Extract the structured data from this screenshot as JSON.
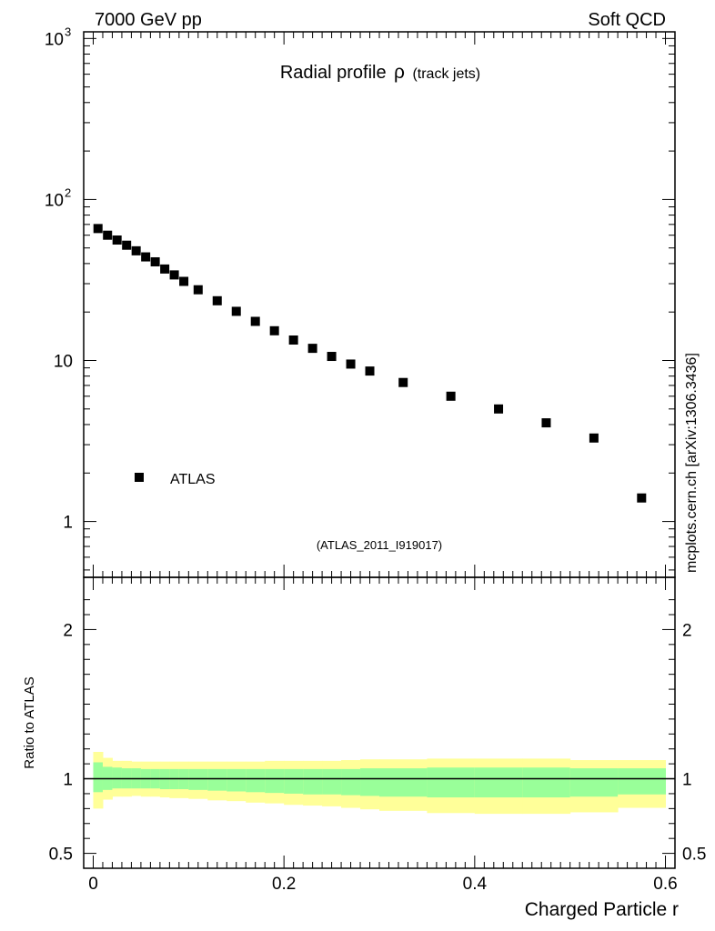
{
  "header": {
    "left_label": "7000 GeV pp",
    "right_label": "Soft QCD",
    "side_label": "mcplots.cern.ch [arXiv:1306.3436]"
  },
  "chart_data": {
    "type": "scatter",
    "title_main": "Radial profile",
    "title_symbol": "ρ",
    "title_suffix": "(track jets)",
    "analysis_id": "(ATLAS_2011_I919017)",
    "legend": [
      "ATLAS"
    ],
    "xlabel": "Charged Particle r",
    "xlim": [
      -0.01,
      0.61
    ],
    "x_ticks": [
      {
        "value": 0,
        "label": "0"
      },
      {
        "value": 0.2,
        "label": "0.2"
      },
      {
        "value": 0.4,
        "label": "0.4"
      },
      {
        "value": 0.6,
        "label": "0.6"
      }
    ],
    "main_panel": {
      "yscale": "log",
      "ylim": [
        0.45,
        1100
      ],
      "y_ticks": [
        {
          "value": 1,
          "label": "1"
        },
        {
          "value": 10,
          "label": "10"
        },
        {
          "value": 100,
          "label": "10",
          "exponent": "2"
        },
        {
          "value": 1000,
          "label": "10",
          "exponent": "3"
        }
      ],
      "series": [
        {
          "name": "ATLAS",
          "x": [
            0.005,
            0.015,
            0.025,
            0.035,
            0.045,
            0.055,
            0.065,
            0.075,
            0.085,
            0.095,
            0.11,
            0.13,
            0.15,
            0.17,
            0.19,
            0.21,
            0.23,
            0.25,
            0.27,
            0.29,
            0.325,
            0.375,
            0.425,
            0.475,
            0.525,
            0.575
          ],
          "y": [
            66,
            60,
            56,
            52,
            48,
            44,
            41,
            37,
            34,
            31,
            27.5,
            23.5,
            20.2,
            17.5,
            15.3,
            13.4,
            11.9,
            10.6,
            9.5,
            8.6,
            7.3,
            6.0,
            5.0,
            4.1,
            3.3,
            1.4
          ]
        }
      ]
    },
    "ratio_panel": {
      "ylabel": "Ratio to ATLAS",
      "ylim": [
        0.4,
        2.35
      ],
      "y_ticks": [
        {
          "value": 0.5,
          "label": "0.5"
        },
        {
          "value": 1,
          "label": "1"
        },
        {
          "value": 2,
          "label": "2"
        }
      ],
      "reference_line": 1,
      "bins": [
        {
          "lo": 0.0,
          "hi": 0.01,
          "inner": [
            0.91,
            1.11
          ],
          "outer": [
            0.8,
            1.18
          ]
        },
        {
          "lo": 0.01,
          "hi": 0.02,
          "inner": [
            0.925,
            1.08
          ],
          "outer": [
            0.86,
            1.14
          ]
        },
        {
          "lo": 0.02,
          "hi": 0.03,
          "inner": [
            0.935,
            1.075
          ],
          "outer": [
            0.88,
            1.12
          ]
        },
        {
          "lo": 0.03,
          "hi": 0.04,
          "inner": [
            0.935,
            1.07
          ],
          "outer": [
            0.88,
            1.12
          ]
        },
        {
          "lo": 0.04,
          "hi": 0.05,
          "inner": [
            0.935,
            1.07
          ],
          "outer": [
            0.885,
            1.115
          ]
        },
        {
          "lo": 0.05,
          "hi": 0.06,
          "inner": [
            0.935,
            1.065
          ],
          "outer": [
            0.88,
            1.115
          ]
        },
        {
          "lo": 0.06,
          "hi": 0.07,
          "inner": [
            0.935,
            1.065
          ],
          "outer": [
            0.88,
            1.115
          ]
        },
        {
          "lo": 0.07,
          "hi": 0.08,
          "inner": [
            0.93,
            1.065
          ],
          "outer": [
            0.875,
            1.115
          ]
        },
        {
          "lo": 0.08,
          "hi": 0.09,
          "inner": [
            0.93,
            1.065
          ],
          "outer": [
            0.87,
            1.115
          ]
        },
        {
          "lo": 0.09,
          "hi": 0.1,
          "inner": [
            0.93,
            1.065
          ],
          "outer": [
            0.87,
            1.115
          ]
        },
        {
          "lo": 0.1,
          "hi": 0.12,
          "inner": [
            0.925,
            1.065
          ],
          "outer": [
            0.865,
            1.115
          ]
        },
        {
          "lo": 0.12,
          "hi": 0.14,
          "inner": [
            0.92,
            1.065
          ],
          "outer": [
            0.855,
            1.115
          ]
        },
        {
          "lo": 0.14,
          "hi": 0.16,
          "inner": [
            0.915,
            1.065
          ],
          "outer": [
            0.85,
            1.115
          ]
        },
        {
          "lo": 0.16,
          "hi": 0.18,
          "inner": [
            0.91,
            1.065
          ],
          "outer": [
            0.84,
            1.115
          ]
        },
        {
          "lo": 0.18,
          "hi": 0.2,
          "inner": [
            0.905,
            1.065
          ],
          "outer": [
            0.835,
            1.12
          ]
        },
        {
          "lo": 0.2,
          "hi": 0.22,
          "inner": [
            0.9,
            1.065
          ],
          "outer": [
            0.825,
            1.12
          ]
        },
        {
          "lo": 0.22,
          "hi": 0.24,
          "inner": [
            0.895,
            1.065
          ],
          "outer": [
            0.82,
            1.12
          ]
        },
        {
          "lo": 0.24,
          "hi": 0.26,
          "inner": [
            0.895,
            1.065
          ],
          "outer": [
            0.815,
            1.12
          ]
        },
        {
          "lo": 0.26,
          "hi": 0.28,
          "inner": [
            0.89,
            1.065
          ],
          "outer": [
            0.805,
            1.125
          ]
        },
        {
          "lo": 0.28,
          "hi": 0.3,
          "inner": [
            0.885,
            1.07
          ],
          "outer": [
            0.795,
            1.13
          ]
        },
        {
          "lo": 0.3,
          "hi": 0.35,
          "inner": [
            0.88,
            1.07
          ],
          "outer": [
            0.785,
            1.13
          ]
        },
        {
          "lo": 0.35,
          "hi": 0.4,
          "inner": [
            0.875,
            1.075
          ],
          "outer": [
            0.77,
            1.135
          ]
        },
        {
          "lo": 0.4,
          "hi": 0.45,
          "inner": [
            0.875,
            1.075
          ],
          "outer": [
            0.765,
            1.135
          ]
        },
        {
          "lo": 0.45,
          "hi": 0.5,
          "inner": [
            0.875,
            1.075
          ],
          "outer": [
            0.765,
            1.135
          ]
        },
        {
          "lo": 0.5,
          "hi": 0.55,
          "inner": [
            0.88,
            1.07
          ],
          "outer": [
            0.775,
            1.125
          ]
        },
        {
          "lo": 0.55,
          "hi": 0.6,
          "inner": [
            0.895,
            1.07
          ],
          "outer": [
            0.805,
            1.125
          ]
        }
      ]
    }
  },
  "colors": {
    "inner_band": "#99ff99",
    "outer_band": "#ffff99",
    "marker": "#000000",
    "axis": "#000000",
    "id_label": "#999999",
    "side_label": "#666666"
  }
}
